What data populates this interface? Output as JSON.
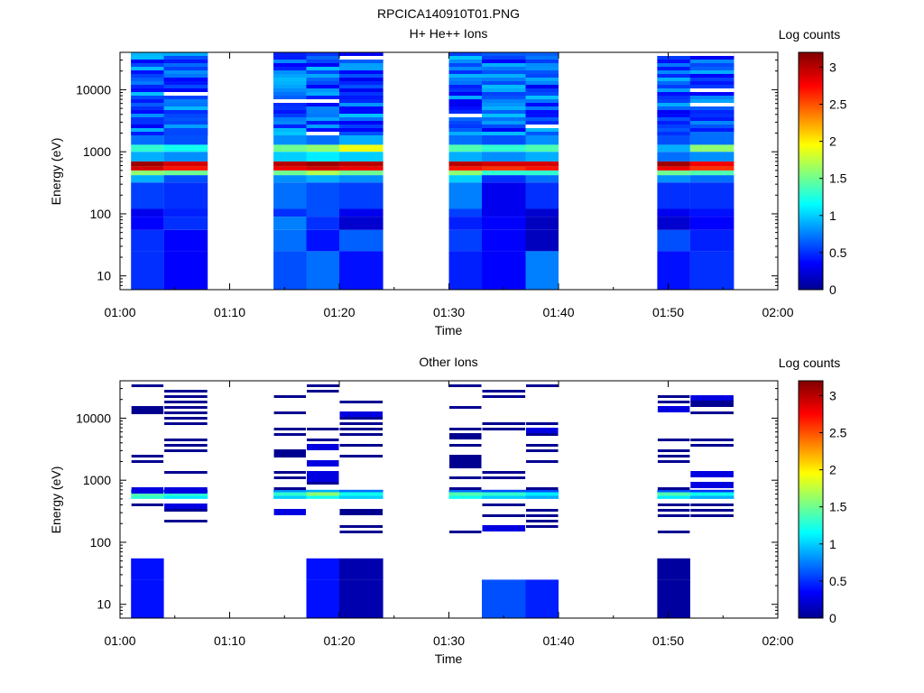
{
  "figure_title": "RPCICA140910T01.PNG",
  "chart_data": [
    {
      "type": "heatmap",
      "title": "H+ He++ Ions",
      "xlabel": "Time",
      "ylabel": "Energy (eV)",
      "x_ticks": [
        "01:00",
        "01:10",
        "01:20",
        "01:30",
        "01:40",
        "01:50",
        "02:00"
      ],
      "xlim": [
        "01:00",
        "02:00"
      ],
      "y_scale": "log",
      "ylim": [
        6,
        40000
      ],
      "y_ticks": [
        10,
        100,
        1000,
        10000
      ],
      "colorbar": {
        "label": "Log counts",
        "range": [
          0,
          3.2
        ],
        "ticks": [
          "0",
          "0.5",
          "1",
          "1.5",
          "2",
          "2.5",
          "3"
        ]
      },
      "time_bins": [
        {
          "start": "01:01",
          "end": "01:04"
        },
        {
          "start": "01:04",
          "end": "01:08"
        },
        {
          "start": "01:14",
          "end": "01:17"
        },
        {
          "start": "01:17",
          "end": "01:20"
        },
        {
          "start": "01:20",
          "end": "01:24"
        },
        {
          "start": "01:30",
          "end": "01:33"
        },
        {
          "start": "01:33",
          "end": "01:37"
        },
        {
          "start": "01:37",
          "end": "01:40"
        },
        {
          "start": "01:49",
          "end": "01:52"
        },
        {
          "start": "01:52",
          "end": "01:56"
        }
      ],
      "energy_bands": [
        {
          "energy": 55,
          "lo": 25,
          "hi": 55,
          "values": [
            0.5,
            0.35,
            0.7,
            0.4,
            0.65,
            0.55,
            0.35,
            0.15,
            0.6,
            0.45
          ]
        },
        {
          "energy": 25,
          "lo": 6,
          "hi": 25,
          "values": [
            0.5,
            0.35,
            0.6,
            0.7,
            0.4,
            0.45,
            0.35,
            0.75,
            0.4,
            0.5
          ]
        },
        {
          "energy": 120,
          "lo": 90,
          "hi": 120,
          "values": [
            0.3,
            0.45,
            0.5,
            0.6,
            0.3,
            0.55,
            0.3,
            0.2,
            0.3,
            0.4
          ]
        },
        {
          "energy": 90,
          "lo": 55,
          "hi": 90,
          "values": [
            0.35,
            0.5,
            0.75,
            0.5,
            0.2,
            0.45,
            0.35,
            0.15,
            0.2,
            0.35
          ]
        },
        {
          "energy": 320,
          "lo": 120,
          "hi": 320,
          "values": [
            0.55,
            0.5,
            0.7,
            0.6,
            0.55,
            0.75,
            0.3,
            0.5,
            0.5,
            0.5
          ]
        },
        {
          "energy": 420,
          "lo": 320,
          "hi": 420,
          "values": [
            0.9,
            0.6,
            0.8,
            0.9,
            0.8,
            1.0,
            0.5,
            0.7,
            0.8,
            0.7
          ]
        },
        {
          "energy": 500,
          "lo": 420,
          "hi": 500,
          "values": [
            1.6,
            1.5,
            1.5,
            1.7,
            1.5,
            1.6,
            1.3,
            1.3,
            1.5,
            1.4
          ]
        },
        {
          "energy": 580,
          "lo": 500,
          "hi": 580,
          "values": [
            2.9,
            2.7,
            2.8,
            2.9,
            2.8,
            2.7,
            2.6,
            2.7,
            2.8,
            2.6
          ]
        },
        {
          "energy": 700,
          "lo": 580,
          "hi": 700,
          "values": [
            3.1,
            2.9,
            3.0,
            3.1,
            3.0,
            3.0,
            2.9,
            2.9,
            3.1,
            2.8
          ]
        },
        {
          "energy": 1000,
          "lo": 700,
          "hi": 1000,
          "values": [
            0.9,
            0.8,
            1.0,
            1.1,
            1.0,
            0.9,
            0.8,
            0.9,
            0.7,
            0.8
          ]
        },
        {
          "energy": 1300,
          "lo": 1000,
          "hi": 1300,
          "values": [
            1.3,
            1.2,
            1.5,
            1.6,
            1.9,
            1.4,
            1.3,
            1.4,
            0.9,
            1.6
          ]
        },
        {
          "energy": 2000,
          "lo": 1300,
          "hi": 2000,
          "values": [
            0.7,
            0.6,
            0.8,
            0.7,
            0.9,
            0.7,
            0.6,
            0.8,
            0.6,
            0.7
          ]
        },
        {
          "energy": 40000,
          "lo": 2000,
          "hi": 40000,
          "values": [
            0.55,
            0.5,
            0.6,
            0.55,
            0.5,
            0.6,
            0.5,
            0.55,
            0.45,
            0.5
          ]
        }
      ],
      "gaps": [
        "01:08–01:14",
        "01:24–01:30",
        "01:40–01:49"
      ]
    },
    {
      "type": "heatmap",
      "title": "Other Ions",
      "xlabel": "Time",
      "ylabel": "Energy (eV)",
      "x_ticks": [
        "01:00",
        "01:10",
        "01:20",
        "01:30",
        "01:40",
        "01:50",
        "02:00"
      ],
      "xlim": [
        "01:00",
        "02:00"
      ],
      "y_scale": "log",
      "ylim": [
        6,
        40000
      ],
      "y_ticks": [
        10,
        100,
        1000,
        10000
      ],
      "colorbar": {
        "label": "Log counts",
        "range": [
          0,
          3.2
        ],
        "ticks": [
          "0",
          "0.5",
          "1",
          "1.5",
          "2",
          "2.5",
          "3"
        ]
      },
      "time_bins": [
        {
          "start": "01:01",
          "end": "01:04"
        },
        {
          "start": "01:04",
          "end": "01:08"
        },
        {
          "start": "01:14",
          "end": "01:17"
        },
        {
          "start": "01:17",
          "end": "01:20"
        },
        {
          "start": "01:20",
          "end": "01:24"
        },
        {
          "start": "01:30",
          "end": "01:33"
        },
        {
          "start": "01:33",
          "end": "01:37"
        },
        {
          "start": "01:37",
          "end": "01:40"
        },
        {
          "start": "01:49",
          "end": "01:52"
        },
        {
          "start": "01:52",
          "end": "01:56"
        }
      ],
      "energy_bands": [
        {
          "energy": 560,
          "lo": 500,
          "hi": 560,
          "values": [
            1.3,
            1.1,
            1.0,
            1.2,
            1.0,
            1.2,
            1.0,
            0.9,
            1.1,
            0.9
          ]
        },
        {
          "energy": 640,
          "lo": 560,
          "hi": 640,
          "values": [
            1.4,
            1.3,
            1.3,
            1.6,
            1.2,
            1.4,
            1.3,
            1.1,
            1.4,
            1.2
          ]
        },
        {
          "energy": 700,
          "lo": 640,
          "hi": 700,
          "values": [
            0.7,
            0.6,
            0.8,
            0.9,
            0.7,
            0.7,
            0.6,
            0.6,
            0.6,
            0.5
          ]
        },
        {
          "energy": 40,
          "lo": 25,
          "hi": 55,
          "values": [
            0.4,
            null,
            null,
            0.4,
            0.1,
            null,
            null,
            null,
            0.05,
            null
          ]
        },
        {
          "energy": 15,
          "lo": 6,
          "hi": 25,
          "values": [
            0.4,
            null,
            null,
            0.4,
            0.1,
            null,
            0.6,
            0.45,
            0.05,
            null
          ]
        }
      ],
      "note": "sparse single-count lines (log counts ≈ 0.1–0.3) at many energies between 100 and 40000 eV"
    }
  ]
}
